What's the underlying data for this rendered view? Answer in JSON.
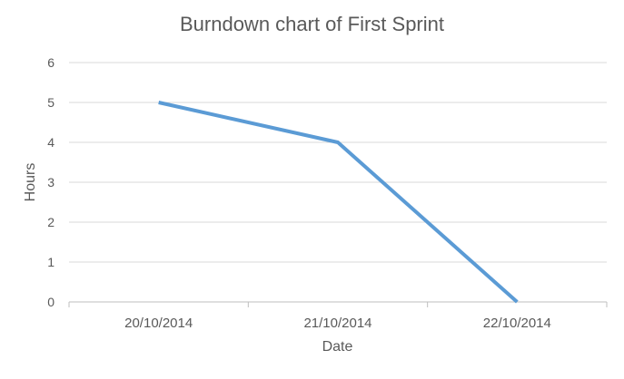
{
  "chart_data": {
    "type": "line",
    "title": "Burndown chart of First Sprint",
    "xlabel": "Date",
    "ylabel": "Hours",
    "categories": [
      "20/10/2014",
      "21/10/2014",
      "22/10/2014"
    ],
    "series": [
      {
        "values": [
          5,
          4,
          0
        ],
        "color": "#5B9BD5"
      }
    ],
    "ylim": [
      0,
      6
    ],
    "yticks": [
      "0",
      "1",
      "2",
      "3",
      "4",
      "5",
      "6"
    ],
    "grid": true,
    "gridColor": "#D9D9D9",
    "axisColor": "#BFBFBF",
    "legend": "none"
  }
}
